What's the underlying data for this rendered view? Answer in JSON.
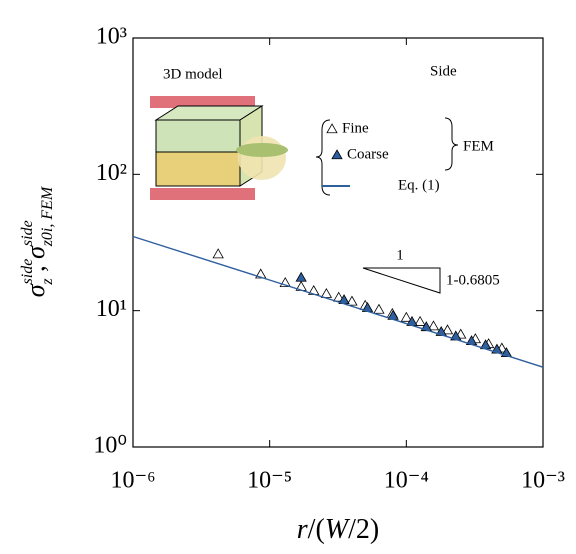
{
  "chart_data": {
    "type": "scatter",
    "log_x": true,
    "log_y": true,
    "xlabel": [
      "r",
      "/(",
      "W",
      "/2)"
    ],
    "ylabel": [
      "σ",
      "side",
      "z",
      " , ",
      "σ",
      "side",
      "z0i, FEM"
    ],
    "xlim": [
      1e-06,
      0.001
    ],
    "ylim": [
      1,
      1000
    ],
    "xticks": [
      {
        "value": 1e-06,
        "label": "10⁻⁶"
      },
      {
        "value": 1e-05,
        "label": "10⁻⁵"
      },
      {
        "value": 0.0001,
        "label": "10⁻⁴"
      },
      {
        "value": 0.001,
        "label": "10⁻³"
      }
    ],
    "yticks": [
      {
        "value": 1,
        "label": "10⁰"
      },
      {
        "value": 10,
        "label": "10¹"
      },
      {
        "value": 100,
        "label": "10²"
      },
      {
        "value": 1000,
        "label": "10³"
      }
    ],
    "series": [
      {
        "name": "Fine",
        "marker": "open-triangle",
        "color": "#000000",
        "x": [
          4.2e-06,
          8.6e-06,
          1.3e-05,
          1.7e-05,
          2.1e-05,
          2.6e-05,
          3.2e-05,
          4e-05,
          5e-05,
          6.3e-05,
          7.9e-05,
          0.0001,
          0.000126,
          0.000158,
          0.0002,
          0.00025,
          0.00032,
          0.0004,
          0.0005
        ],
        "values": [
          26,
          18.5,
          16,
          15,
          14,
          13.3,
          12.5,
          11.7,
          10.9,
          10.2,
          9.5,
          8.9,
          8.3,
          7.7,
          7.2,
          6.7,
          6.2,
          5.7,
          5.3
        ]
      },
      {
        "name": "Coarse",
        "marker": "filled-triangle",
        "color": "#2e5f9e",
        "x": [
          1.7e-05,
          3.5e-05,
          5.2e-05,
          8e-05,
          0.00011,
          0.00014,
          0.00018,
          0.00023,
          0.0003,
          0.00038,
          0.00046,
          0.00054
        ],
        "values": [
          17.5,
          12,
          10.5,
          9.2,
          8.3,
          7.6,
          7,
          6.5,
          6,
          5.6,
          5.2,
          4.9
        ]
      },
      {
        "name": "Eq. (1)",
        "marker": "line",
        "color": "#2e5f9e",
        "x": [
          1e-06,
          0.001
        ],
        "values": [
          35,
          3.85
        ]
      }
    ],
    "legend_group_label": "FEM",
    "annotations": {
      "inset": "3D model",
      "side": "Side",
      "slope_run": "1",
      "slope_rise": "1-0.6805"
    }
  }
}
